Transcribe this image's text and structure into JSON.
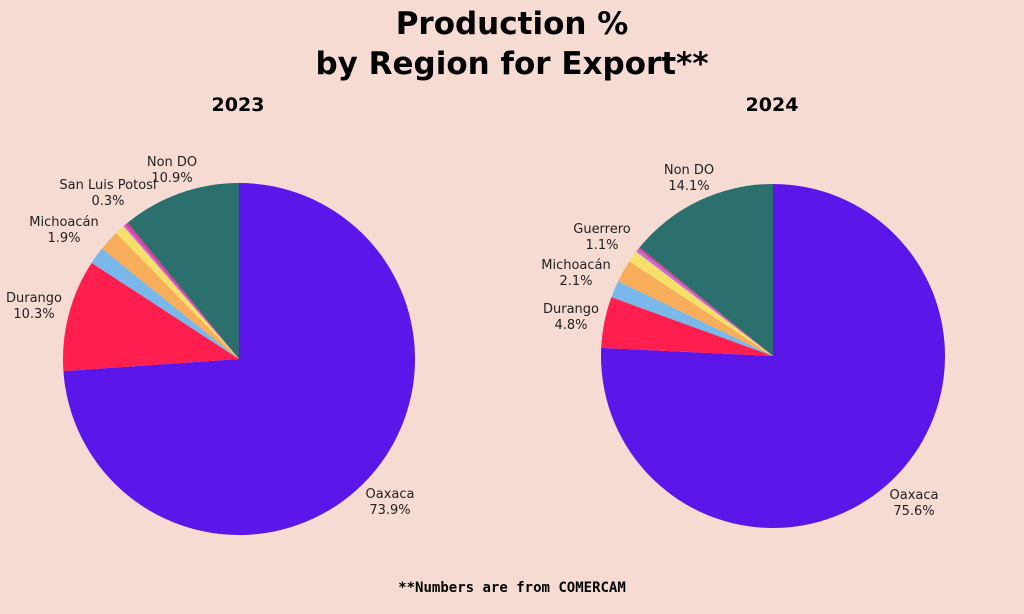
{
  "header": {
    "title_line1": "Production %",
    "title_line2": "by Region for Export**"
  },
  "footnote": "**Numbers are from COMERCAM",
  "chart_data": [
    {
      "type": "pie",
      "title": "2023",
      "start_angle_deg": 90,
      "direction": "clockwise",
      "slices": [
        {
          "label": "Oaxaca",
          "value": 73.9,
          "color": "#5b17e9",
          "shown": true
        },
        {
          "label": "Durango",
          "value": 10.3,
          "color": "#ff1f4f",
          "shown": true
        },
        {
          "label": "",
          "value": 1.6,
          "color": "#7ab8ec",
          "shown": false
        },
        {
          "label": "Michoacán",
          "value": 1.9,
          "color": "#f7ad5a",
          "shown": true
        },
        {
          "label": "",
          "value": 0.9,
          "color": "#f6e06a",
          "shown": false
        },
        {
          "label": "",
          "value": 0.2,
          "color": "#c46fd6",
          "shown": false
        },
        {
          "label": "San Luis Potosi",
          "value": 0.3,
          "color": "#e23aa0",
          "shown": true
        },
        {
          "label": "Non DO",
          "value": 10.9,
          "color": "#2b706c",
          "shown": true
        }
      ]
    },
    {
      "type": "pie",
      "title": "2024",
      "start_angle_deg": 90,
      "direction": "clockwise",
      "slices": [
        {
          "label": "Oaxaca",
          "value": 75.6,
          "color": "#5b17e9",
          "shown": true
        },
        {
          "label": "Durango",
          "value": 4.8,
          "color": "#ff1f4f",
          "shown": true
        },
        {
          "label": "",
          "value": 1.6,
          "color": "#7ab8ec",
          "shown": false
        },
        {
          "label": "Michoacán",
          "value": 2.1,
          "color": "#f7ad5a",
          "shown": true
        },
        {
          "label": "Guerrero",
          "value": 1.1,
          "color": "#f6e06a",
          "shown": true
        },
        {
          "label": "",
          "value": 0.3,
          "color": "#c46fd6",
          "shown": false
        },
        {
          "label": "",
          "value": 0.2,
          "color": "#e23aa0",
          "shown": false
        },
        {
          "label": "Non DO",
          "value": 14.1,
          "color": "#2b706c",
          "shown": true
        }
      ]
    }
  ]
}
